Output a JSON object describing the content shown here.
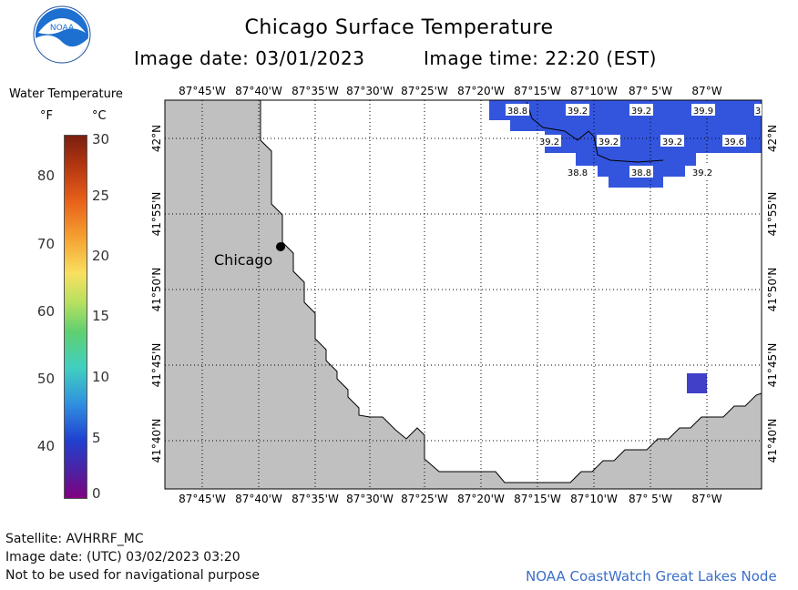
{
  "header": {
    "title": "Chicago Surface Temperature",
    "image_date_label": "Image date: 03/01/2023",
    "image_time_label": "Image time: 22:20 (EST)"
  },
  "legend": {
    "title": "Water Temperature",
    "unit_f": "°F",
    "unit_c": "°C",
    "f_ticks": [
      "80",
      "70",
      "60",
      "50",
      "40"
    ],
    "c_ticks": [
      "30",
      "25",
      "20",
      "15",
      "10",
      "5",
      "0"
    ]
  },
  "map": {
    "lon_labels": [
      "87°45'W",
      "87°40'W",
      "87°35'W",
      "87°30'W",
      "87°25'W",
      "87°20'W",
      "87°15'W",
      "87°10'W",
      "87° 5'W",
      "87°W"
    ],
    "lat_labels": [
      "42°N",
      "41°55'N",
      "41°50'N",
      "41°45'N",
      "41°40'N"
    ],
    "city_label": "Chicago",
    "temperature_labels": [
      {
        "value": "38.8",
        "row": 0,
        "col": 0
      },
      {
        "value": "39.2",
        "row": 0,
        "col": 1
      },
      {
        "value": "39.2",
        "row": 0,
        "col": 2
      },
      {
        "value": "39.9",
        "row": 0,
        "col": 3
      },
      {
        "value": "3",
        "row": 0,
        "col": 4
      },
      {
        "value": "39.2",
        "row": 1,
        "col": 0
      },
      {
        "value": "39.2",
        "row": 1,
        "col": 1
      },
      {
        "value": "39.2",
        "row": 1,
        "col": 2
      },
      {
        "value": "39.6",
        "row": 1,
        "col": 3
      },
      {
        "value": "38.8",
        "row": 2,
        "col": 0
      },
      {
        "value": "38.8",
        "row": 2,
        "col": 1
      },
      {
        "value": "39.2",
        "row": 2,
        "col": 2
      }
    ],
    "colors": {
      "land": "#c0c0c0",
      "water_data": "#3355dd",
      "water_pixel": "#4040c8",
      "grid": "#000000"
    }
  },
  "footer": {
    "satellite": "Satellite: AVHRRF_MC",
    "utc_date": "Image date: (UTC) 03/02/2023   03:20",
    "disclaimer": "Not to be used for navigational purpose",
    "credit": "NOAA CoastWatch Great Lakes Node"
  },
  "logo": {
    "text": "NOAA"
  }
}
